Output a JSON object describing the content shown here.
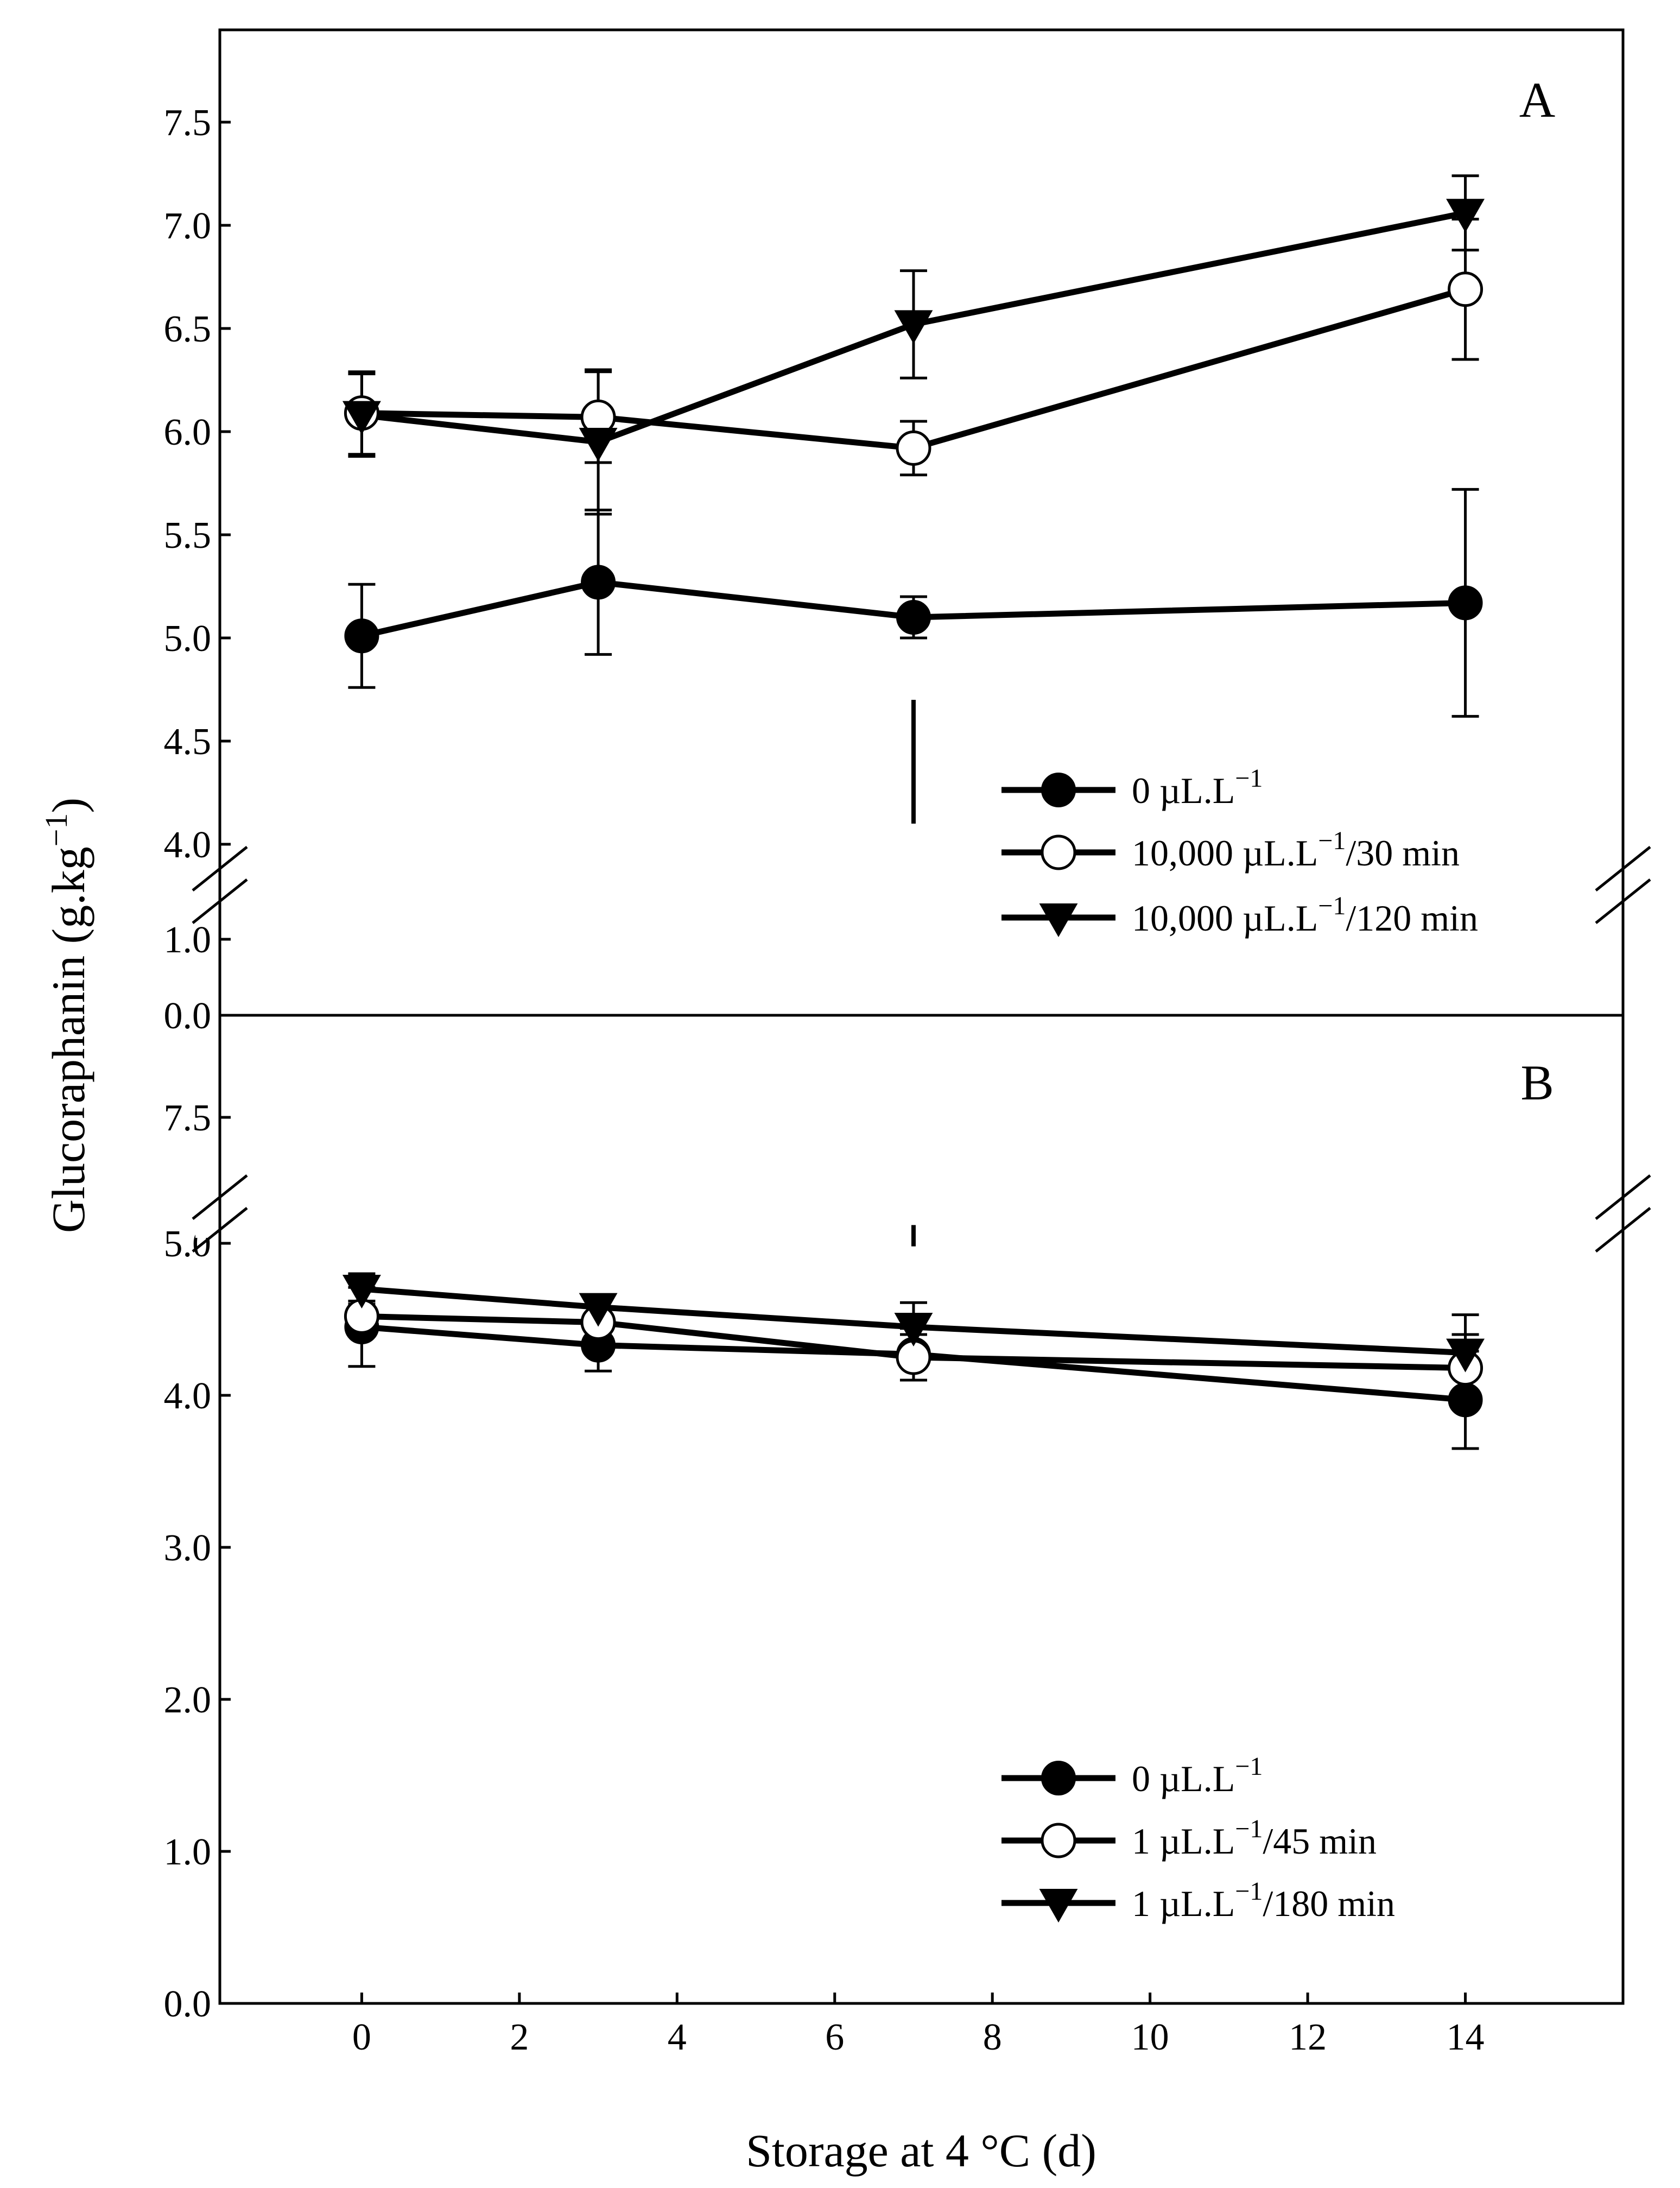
{
  "chart_data": [
    {
      "panel_label": "A",
      "type": "line",
      "ylabel": "Glucoraphanin (g.kg",
      "ylabel_superscript": "−1",
      "ylabel_close": ")",
      "y_axis_break": true,
      "y_lower_segment": [
        0.0,
        1.5
      ],
      "y_upper_segment": [
        4.0,
        7.9
      ],
      "yticks_lower": [
        "0.0",
        "1.0"
      ],
      "yticks_upper": [
        "4.0",
        "4.5",
        "5.0",
        "5.5",
        "6.0",
        "6.5",
        "7.0",
        "7.5"
      ],
      "lsd_bar": [
        4.1,
        4.7
      ],
      "x": [
        0,
        3,
        7,
        14
      ],
      "series": [
        {
          "name": "0 µL.L",
          "sup": "−1",
          "suffix": "",
          "marker": "filled-circle",
          "values": [
            5.01,
            5.27,
            5.1,
            5.17
          ],
          "errors": [
            0.25,
            0.35,
            0.1,
            0.55
          ]
        },
        {
          "name": "10,000 µL.L",
          "sup": "−1",
          "suffix": "/30 min",
          "marker": "open-circle",
          "values": [
            6.09,
            6.07,
            5.92,
            6.69
          ],
          "errors": [
            0.2,
            0.22,
            0.13,
            0.34
          ]
        },
        {
          "name": "10,000 µL.L",
          "sup": "−1",
          "suffix": "/120 min",
          "marker": "filled-triangle-down",
          "values": [
            6.08,
            5.95,
            6.52,
            7.06
          ],
          "errors": [
            0.2,
            0.35,
            0.26,
            0.18
          ]
        }
      ]
    },
    {
      "panel_label": "B",
      "type": "line",
      "xlabel": "Storage at 4 °C (d)",
      "xticks": [
        "0",
        "2",
        "4",
        "6",
        "8",
        "10",
        "12",
        "14"
      ],
      "xlim": [
        -1.8,
        16
      ],
      "y_axis_break": true,
      "y_lower_segment": [
        0.0,
        5.0
      ],
      "y_upper_segment": [
        7.0,
        7.9
      ],
      "yticks_lower": [
        "0.0",
        "1.0",
        "2.0",
        "3.0",
        "4.0",
        "5.0"
      ],
      "yticks_upper": [
        "7.5"
      ],
      "lsd_bar": [
        4.98,
        5.12
      ],
      "x": [
        0,
        3,
        7,
        14
      ],
      "series": [
        {
          "name": "0 µL.L",
          "sup": "−1",
          "suffix": "",
          "marker": "filled-circle",
          "values": [
            4.45,
            4.33,
            4.27,
            3.97
          ],
          "errors": [
            0.26,
            0.17,
            0.17,
            0.32
          ]
        },
        {
          "name": "1 µL.L",
          "sup": "−1",
          "suffix": "/45 min",
          "marker": "open-circle",
          "values": [
            4.52,
            4.48,
            4.25,
            4.18
          ],
          "errors": [
            0.1,
            0.1,
            0.15,
            0.22
          ]
        },
        {
          "name": "1 µL.L",
          "sup": "−1",
          "suffix": "/180 min",
          "marker": "filled-triangle-down",
          "values": [
            4.7,
            4.58,
            4.45,
            4.28
          ],
          "errors": [
            0.1,
            0.08,
            0.16,
            0.25
          ]
        }
      ]
    }
  ]
}
